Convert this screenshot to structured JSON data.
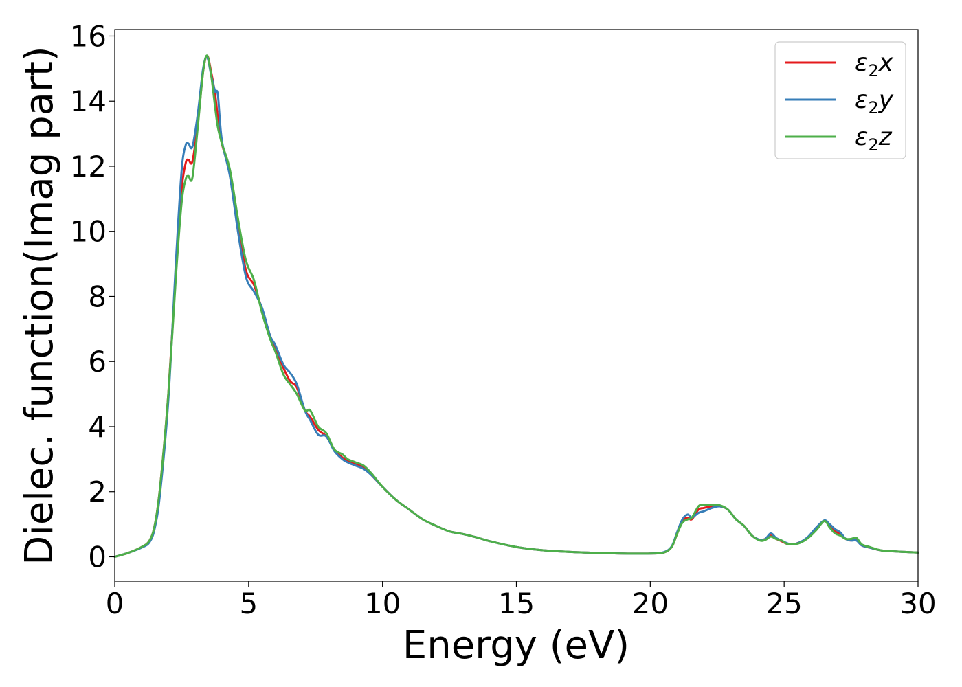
{
  "chart_data": {
    "type": "line",
    "xlabel": "Energy (eV)",
    "ylabel": "Dielec. function(Imag part)",
    "xlim": [
      0,
      30
    ],
    "ylim": [
      -0.75,
      16.2
    ],
    "xticks": [
      0,
      5,
      10,
      15,
      20,
      25,
      30
    ],
    "yticks": [
      0,
      2,
      4,
      6,
      8,
      10,
      12,
      14,
      16
    ],
    "grid": false,
    "legend_position": "top-right",
    "series": [
      {
        "name": "ε2x",
        "legend_label": {
          "main": "ε",
          "sub": "2",
          "suffix": "x"
        },
        "color": "#e41a1c",
        "x": [
          0,
          0.5,
          1.0,
          1.3,
          1.5,
          1.7,
          2.0,
          2.3,
          2.5,
          2.65,
          2.75,
          2.9,
          3.1,
          3.3,
          3.45,
          3.6,
          3.75,
          3.85,
          4.0,
          4.3,
          4.6,
          4.9,
          5.2,
          5.5,
          5.8,
          6.0,
          6.3,
          6.55,
          6.8,
          7.1,
          7.3,
          7.6,
          7.9,
          8.2,
          8.5,
          8.7,
          9.0,
          9.3,
          9.6,
          10.0,
          10.5,
          11.0,
          11.5,
          12.0,
          12.5,
          13.0,
          13.5,
          14.0,
          15.0,
          16.0,
          17.0,
          18.0,
          19.0,
          20.0,
          20.5,
          20.8,
          21.0,
          21.2,
          21.4,
          21.55,
          21.8,
          22.0,
          22.3,
          22.6,
          22.9,
          23.2,
          23.5,
          23.8,
          24.1,
          24.3,
          24.5,
          24.7,
          24.9,
          25.1,
          25.3,
          25.6,
          25.9,
          26.2,
          26.5,
          26.7,
          26.9,
          27.1,
          27.3,
          27.5,
          27.7,
          27.9,
          28.2,
          28.6,
          29.0,
          29.5,
          30.0
        ],
        "y": [
          0,
          0.12,
          0.3,
          0.5,
          1.0,
          2.2,
          5.0,
          9.0,
          11.3,
          12.1,
          12.2,
          12.15,
          13.3,
          14.9,
          15.4,
          14.9,
          14.2,
          13.5,
          12.7,
          11.8,
          10.2,
          8.8,
          8.35,
          7.6,
          6.8,
          6.4,
          5.8,
          5.4,
          5.2,
          4.5,
          4.3,
          3.9,
          3.7,
          3.3,
          3.05,
          2.95,
          2.85,
          2.75,
          2.5,
          2.15,
          1.75,
          1.45,
          1.15,
          0.95,
          0.78,
          0.7,
          0.6,
          0.48,
          0.3,
          0.2,
          0.15,
          0.12,
          0.1,
          0.1,
          0.13,
          0.3,
          0.7,
          1.1,
          1.2,
          1.15,
          1.45,
          1.5,
          1.55,
          1.55,
          1.45,
          1.15,
          0.95,
          0.65,
          0.52,
          0.55,
          0.65,
          0.55,
          0.48,
          0.4,
          0.38,
          0.45,
          0.6,
          0.85,
          1.1,
          0.95,
          0.78,
          0.7,
          0.55,
          0.5,
          0.55,
          0.35,
          0.28,
          0.2,
          0.17,
          0.15,
          0.13
        ]
      },
      {
        "name": "ε2y",
        "legend_label": {
          "main": "ε",
          "sub": "2",
          "suffix": "y"
        },
        "color": "#377eb8",
        "x": [
          0,
          0.5,
          1.0,
          1.3,
          1.5,
          1.7,
          2.0,
          2.3,
          2.5,
          2.65,
          2.75,
          2.9,
          3.1,
          3.3,
          3.45,
          3.6,
          3.75,
          3.85,
          4.0,
          4.3,
          4.6,
          4.9,
          5.2,
          5.5,
          5.8,
          6.0,
          6.3,
          6.55,
          6.8,
          7.1,
          7.3,
          7.6,
          7.9,
          8.2,
          8.5,
          8.7,
          9.0,
          9.3,
          9.6,
          10.0,
          10.5,
          11.0,
          11.5,
          12.0,
          12.5,
          13.0,
          13.5,
          14.0,
          15.0,
          16.0,
          17.0,
          18.0,
          19.0,
          20.0,
          20.5,
          20.8,
          21.0,
          21.2,
          21.4,
          21.55,
          21.8,
          22.0,
          22.3,
          22.6,
          22.9,
          23.2,
          23.5,
          23.8,
          24.1,
          24.3,
          24.5,
          24.7,
          24.9,
          25.1,
          25.3,
          25.6,
          25.9,
          26.2,
          26.5,
          26.7,
          26.9,
          27.1,
          27.3,
          27.5,
          27.7,
          27.9,
          28.2,
          28.6,
          29.0,
          29.5,
          30.0
        ],
        "y": [
          0,
          0.12,
          0.28,
          0.45,
          0.9,
          2.0,
          4.8,
          9.3,
          11.9,
          12.65,
          12.7,
          12.6,
          13.6,
          15.0,
          15.35,
          14.8,
          14.3,
          14.2,
          12.8,
          11.7,
          10.0,
          8.6,
          8.15,
          7.65,
          6.8,
          6.5,
          5.9,
          5.65,
          5.3,
          4.5,
          4.2,
          3.75,
          3.7,
          3.25,
          3.0,
          2.9,
          2.8,
          2.7,
          2.5,
          2.15,
          1.75,
          1.45,
          1.15,
          0.95,
          0.78,
          0.7,
          0.6,
          0.48,
          0.3,
          0.2,
          0.15,
          0.12,
          0.1,
          0.1,
          0.14,
          0.32,
          0.75,
          1.15,
          1.3,
          1.2,
          1.35,
          1.4,
          1.5,
          1.55,
          1.45,
          1.15,
          0.95,
          0.65,
          0.52,
          0.55,
          0.72,
          0.58,
          0.5,
          0.42,
          0.38,
          0.45,
          0.62,
          0.9,
          1.12,
          1.0,
          0.85,
          0.75,
          0.55,
          0.5,
          0.5,
          0.35,
          0.28,
          0.2,
          0.17,
          0.15,
          0.13
        ]
      },
      {
        "name": "ε2z",
        "legend_label": {
          "main": "ε",
          "sub": "2",
          "suffix": "z"
        },
        "color": "#4daf4a",
        "x": [
          0,
          0.5,
          1.0,
          1.3,
          1.5,
          1.7,
          2.0,
          2.3,
          2.5,
          2.65,
          2.75,
          2.9,
          3.1,
          3.3,
          3.45,
          3.6,
          3.75,
          3.85,
          4.0,
          4.3,
          4.6,
          4.9,
          5.2,
          5.5,
          5.8,
          6.0,
          6.3,
          6.55,
          6.8,
          7.1,
          7.3,
          7.6,
          7.9,
          8.2,
          8.5,
          8.7,
          9.0,
          9.3,
          9.6,
          10.0,
          10.5,
          11.0,
          11.5,
          12.0,
          12.5,
          13.0,
          13.5,
          14.0,
          15.0,
          16.0,
          17.0,
          18.0,
          19.0,
          20.0,
          20.5,
          20.8,
          21.0,
          21.2,
          21.4,
          21.55,
          21.8,
          22.0,
          22.3,
          22.6,
          22.9,
          23.2,
          23.5,
          23.8,
          24.1,
          24.3,
          24.5,
          24.7,
          24.9,
          25.1,
          25.3,
          25.6,
          25.9,
          26.2,
          26.5,
          26.7,
          26.9,
          27.1,
          27.3,
          27.5,
          27.7,
          27.9,
          28.2,
          28.6,
          29.0,
          29.5,
          30.0
        ],
        "y": [
          0,
          0.12,
          0.3,
          0.5,
          1.0,
          2.2,
          5.0,
          8.8,
          10.9,
          11.6,
          11.7,
          11.65,
          13.2,
          14.9,
          15.4,
          14.8,
          13.8,
          13.2,
          12.7,
          11.9,
          10.4,
          9.1,
          8.5,
          7.5,
          6.7,
          6.3,
          5.6,
          5.3,
          5.0,
          4.5,
          4.5,
          4.0,
          3.8,
          3.3,
          3.15,
          3.0,
          2.9,
          2.8,
          2.55,
          2.15,
          1.75,
          1.45,
          1.15,
          0.95,
          0.78,
          0.7,
          0.6,
          0.48,
          0.3,
          0.2,
          0.15,
          0.12,
          0.1,
          0.1,
          0.13,
          0.3,
          0.7,
          1.05,
          1.15,
          1.2,
          1.55,
          1.6,
          1.6,
          1.58,
          1.45,
          1.15,
          0.95,
          0.65,
          0.5,
          0.52,
          0.62,
          0.55,
          0.5,
          0.4,
          0.38,
          0.43,
          0.58,
          0.82,
          1.1,
          0.9,
          0.72,
          0.65,
          0.55,
          0.55,
          0.58,
          0.38,
          0.3,
          0.2,
          0.17,
          0.15,
          0.13
        ]
      }
    ]
  }
}
